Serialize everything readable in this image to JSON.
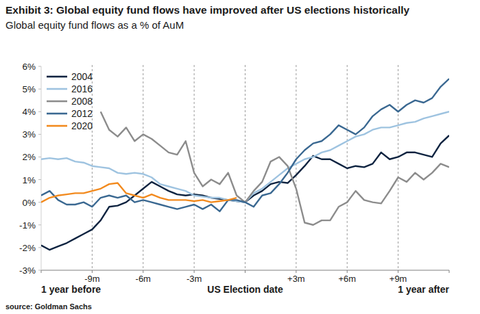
{
  "chart_data": {
    "type": "line",
    "title": "Exhibit 3: Global equity fund flows have improved after US elections historically",
    "subtitle": "Global equity fund flows as a % of AuM",
    "source": "source: Goldman Sachs",
    "x": [
      -12,
      -11.5,
      -11,
      -10.5,
      -10,
      -9.5,
      -9,
      -8.5,
      -8,
      -7.5,
      -7,
      -6.5,
      -6,
      -5.5,
      -5,
      -4.5,
      -4,
      -3.5,
      -3,
      -2.5,
      -2,
      -1.5,
      -1,
      -0.5,
      0,
      0.5,
      1,
      1.5,
      2,
      2.5,
      3,
      3.5,
      4,
      4.5,
      5,
      5.5,
      6,
      6.5,
      7,
      7.5,
      8,
      8.5,
      9,
      9.5,
      10,
      10.5,
      11,
      11.5,
      12
    ],
    "xlim": [
      -12,
      12
    ],
    "xticks": [
      {
        "value": -12,
        "label": "1 year before"
      },
      {
        "value": -9,
        "label": "-9m"
      },
      {
        "value": -6,
        "label": "-6m"
      },
      {
        "value": -3,
        "label": "-3m"
      },
      {
        "value": 0,
        "label": "US Election date"
      },
      {
        "value": 3,
        "label": "+3m"
      },
      {
        "value": 6,
        "label": "+6m"
      },
      {
        "value": 9,
        "label": "+9m"
      },
      {
        "value": 12,
        "label": "1 year after"
      }
    ],
    "ylim": [
      -3,
      6
    ],
    "yticks": [
      {
        "value": -3,
        "label": "-3%"
      },
      {
        "value": -2,
        "label": "-2%"
      },
      {
        "value": -1,
        "label": "-1%"
      },
      {
        "value": 0,
        "label": "0%"
      },
      {
        "value": 1,
        "label": "1%"
      },
      {
        "value": 2,
        "label": "2%"
      },
      {
        "value": 3,
        "label": "3%"
      },
      {
        "value": 4,
        "label": "4%"
      },
      {
        "value": 5,
        "label": "5%"
      },
      {
        "value": 6,
        "label": "6%"
      }
    ],
    "grid": true,
    "legend": "upper left",
    "series": [
      {
        "name": "2004",
        "color": "#0d2340",
        "values": [
          -1.9,
          -2.1,
          -1.95,
          -1.8,
          -1.6,
          -1.4,
          -1.2,
          -0.8,
          -0.2,
          -0.15,
          0.0,
          0.3,
          0.6,
          0.9,
          0.7,
          0.5,
          0.35,
          0.3,
          0.35,
          0.3,
          0.2,
          0.15,
          0.1,
          0.05,
          0.0,
          0.3,
          0.5,
          0.8,
          0.9,
          0.85,
          1.2,
          1.6,
          2.05,
          1.9,
          1.9,
          1.7,
          1.5,
          1.6,
          1.55,
          1.7,
          2.2,
          1.9,
          2.0,
          2.2,
          2.2,
          2.1,
          2.0,
          2.6,
          2.95
        ]
      },
      {
        "name": "2016",
        "color": "#9ec3e0",
        "values": [
          1.9,
          1.95,
          1.9,
          1.95,
          1.8,
          1.75,
          1.6,
          1.55,
          1.5,
          1.3,
          1.25,
          1.3,
          1.25,
          1.1,
          0.8,
          0.7,
          0.6,
          0.5,
          0.3,
          0.25,
          0.2,
          0.2,
          0.1,
          0.05,
          0.0,
          0.4,
          0.6,
          0.9,
          1.2,
          1.5,
          1.7,
          1.9,
          2.0,
          2.2,
          2.3,
          2.5,
          2.7,
          2.9,
          3.0,
          3.2,
          3.3,
          3.3,
          3.4,
          3.5,
          3.55,
          3.7,
          3.8,
          3.9,
          4.0
        ]
      },
      {
        "name": "2008",
        "color": "#8c8c8c",
        "values": [
          null,
          null,
          null,
          null,
          null,
          null,
          null,
          4.0,
          3.2,
          2.9,
          3.3,
          2.7,
          3.0,
          2.8,
          2.5,
          2.2,
          2.1,
          2.7,
          1.3,
          0.7,
          1.0,
          0.8,
          1.3,
          0.3,
          0.0,
          0.5,
          0.9,
          1.8,
          2.0,
          1.6,
          0.6,
          -0.9,
          -1.0,
          -0.8,
          -0.8,
          -0.2,
          0.0,
          0.5,
          0.1,
          0.0,
          -0.05,
          0.5,
          1.1,
          0.9,
          1.3,
          1.0,
          1.3,
          1.7,
          1.55
        ]
      },
      {
        "name": "2012",
        "color": "#3a6891",
        "values": [
          0.3,
          0.5,
          0.1,
          -0.1,
          -0.1,
          0.0,
          -0.2,
          0.2,
          0.3,
          0.2,
          0.3,
          0.0,
          0.1,
          0.0,
          -0.1,
          -0.2,
          -0.3,
          -0.2,
          -0.1,
          -0.3,
          -0.1,
          -0.4,
          0.1,
          0.1,
          0.0,
          -0.2,
          0.3,
          0.4,
          0.8,
          1.3,
          1.9,
          2.3,
          2.6,
          2.7,
          3.0,
          3.4,
          3.2,
          3.0,
          3.3,
          3.8,
          4.1,
          4.3,
          4.0,
          4.3,
          4.5,
          4.4,
          4.6,
          5.1,
          5.45
        ]
      },
      {
        "name": "2020",
        "color": "#f28a1e",
        "values": [
          0.0,
          0.2,
          0.3,
          0.35,
          0.4,
          0.4,
          0.5,
          0.6,
          0.8,
          0.85,
          0.4,
          0.3,
          0.2,
          0.35,
          0.2,
          0.1,
          0.1,
          0.1,
          0.05,
          0.1,
          0.0,
          0.05,
          0.1,
          0.2,
          null,
          null,
          null,
          null,
          null,
          null,
          null,
          null,
          null,
          null,
          null,
          null,
          null,
          null,
          null,
          null,
          null,
          null,
          null,
          null,
          null,
          null,
          null,
          null,
          null
        ]
      }
    ]
  }
}
